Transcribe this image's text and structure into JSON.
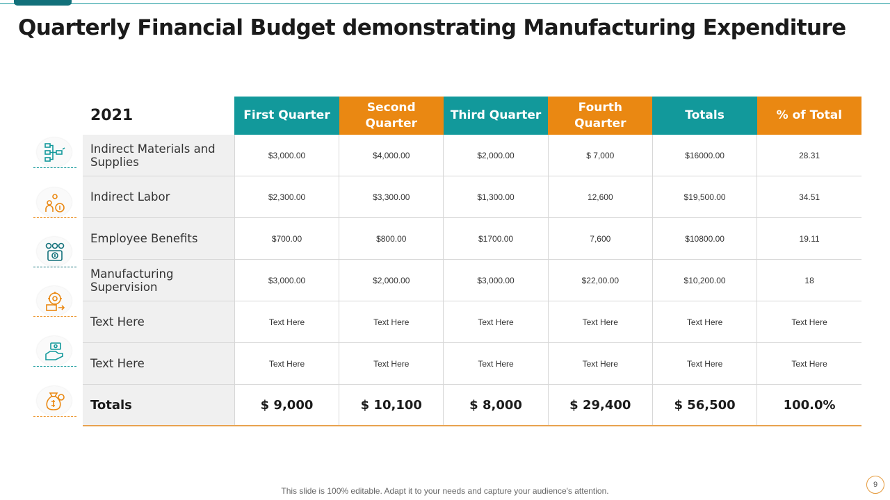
{
  "title": "Quarterly Financial Budget demonstrating Manufacturing Expenditure",
  "table": {
    "year": "2021",
    "headers": [
      "First Quarter",
      "Second Quarter",
      "Third Quarter",
      "Fourth Quarter",
      "Totals",
      "% of  Total"
    ],
    "header_colors": [
      "#12999b",
      "#ea8812"
    ],
    "rows": [
      {
        "label": "Indirect Materials and Supplies",
        "icon": "flowchart-icon",
        "cells": [
          "$3,000.00",
          "$4,000.00",
          "$2,000.00",
          "$  7,000",
          "$16000.00",
          "28.31"
        ]
      },
      {
        "label": "Indirect Labor",
        "icon": "workers-money-icon",
        "cells": [
          "$2,300.00",
          "$3,300.00",
          "$1,300.00",
          "12,600",
          "$19,500.00",
          "34.51"
        ]
      },
      {
        "label": "Employee Benefits",
        "icon": "team-benefits-icon",
        "cells": [
          "$700.00",
          "$800.00",
          "$1700.00",
          "7,600",
          "$10800.00",
          "19.11"
        ]
      },
      {
        "label": "Manufacturing Supervision",
        "icon": "gear-supervision-icon",
        "cells": [
          "$3,000.00",
          "$2,000.00",
          "$3,000.00",
          "$22,00.00",
          "$10,200.00",
          "18"
        ]
      },
      {
        "label": "Text Here",
        "icon": "hand-money-icon",
        "cells": [
          "Text Here",
          "Text Here",
          "Text Here",
          "Text Here",
          "Text Here",
          "Text Here"
        ]
      },
      {
        "label": "Text Here",
        "icon": "hand-coin-icon",
        "cells": [
          "Text Here",
          "Text Here",
          "Text Here",
          "Text Here",
          "Text Here",
          "Text Here"
        ]
      }
    ],
    "totals": {
      "label": "Totals",
      "icon": "money-bag-icon",
      "cells": [
        "$ 9,000",
        "$ 10,100",
        "$ 8,000",
        "$ 29,400",
        "$ 56,500",
        "100.0%"
      ]
    }
  },
  "footer": "This slide is 100% editable. Adapt it to your needs and capture your audience's attention.",
  "page_number": "9"
}
